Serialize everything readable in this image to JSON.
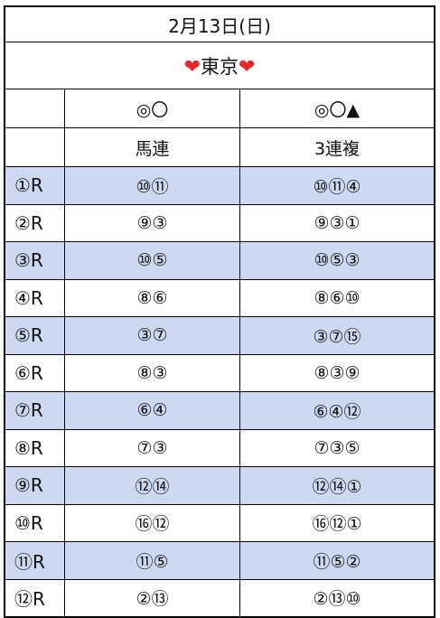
{
  "header": {
    "date": "2月13日(日)",
    "venue": "東京",
    "venue_decoration": "heart-icon"
  },
  "columns": {
    "umaren_marks": "◎〇",
    "sanrenpuku_marks": "◎〇▲",
    "umaren_label": "馬連",
    "sanrenpuku_label": "3連複"
  },
  "colors": {
    "alternate_row": "#cdd9f2",
    "heart": "#e5272a"
  },
  "races": [
    {
      "race": "①R",
      "umaren": "⑩⑪",
      "sanrenpuku": "⑩⑪④"
    },
    {
      "race": "②R",
      "umaren": "⑨③",
      "sanrenpuku": "⑨③①"
    },
    {
      "race": "③R",
      "umaren": "⑩⑤",
      "sanrenpuku": "⑩⑤③"
    },
    {
      "race": "④R",
      "umaren": "⑧⑥",
      "sanrenpuku": "⑧⑥⑩"
    },
    {
      "race": "⑤R",
      "umaren": "③⑦",
      "sanrenpuku": "③⑦⑮"
    },
    {
      "race": "⑥R",
      "umaren": "⑧③",
      "sanrenpuku": "⑧③⑨"
    },
    {
      "race": "⑦R",
      "umaren": "⑥④",
      "sanrenpuku": "⑥④⑫"
    },
    {
      "race": "⑧R",
      "umaren": "⑦③",
      "sanrenpuku": "⑦③⑤"
    },
    {
      "race": "⑨R",
      "umaren": "⑫⑭",
      "sanrenpuku": "⑫⑭①"
    },
    {
      "race": "⑩R",
      "umaren": "⑯⑫",
      "sanrenpuku": "⑯⑫①"
    },
    {
      "race": "⑪R",
      "umaren": "⑪⑤",
      "sanrenpuku": "⑪⑤②"
    },
    {
      "race": "⑫R",
      "umaren": "②⑬",
      "sanrenpuku": "②⑬⑩"
    }
  ]
}
